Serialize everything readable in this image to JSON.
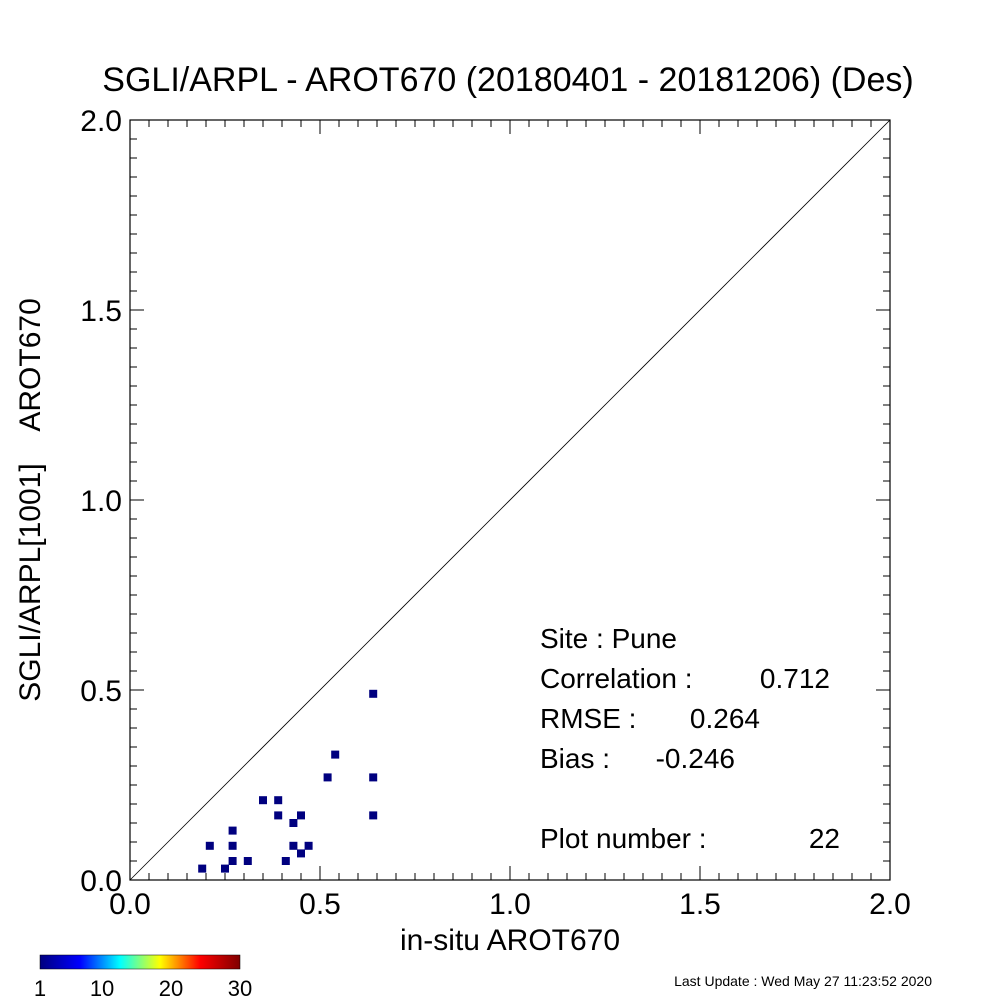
{
  "chart_data": {
    "type": "scatter",
    "title": "SGLI/ARPL - AROT670 (20180401 - 20181206) (Des)",
    "xlabel": "in-situ AROT670",
    "ylabel": "SGLI/ARPL[1001]    AROT670",
    "xlim": [
      0.0,
      2.0
    ],
    "ylim": [
      0.0,
      2.0
    ],
    "x_ticks": [
      "0.0",
      "0.5",
      "1.0",
      "1.5",
      "2.0"
    ],
    "y_ticks": [
      "0.0",
      "0.5",
      "1.0",
      "1.5",
      "2.0"
    ],
    "reference_line": "1:1",
    "grid": false,
    "point_color": "#00007f",
    "points": [
      {
        "x": 0.19,
        "y": 0.03
      },
      {
        "x": 0.21,
        "y": 0.09
      },
      {
        "x": 0.25,
        "y": 0.03
      },
      {
        "x": 0.27,
        "y": 0.05
      },
      {
        "x": 0.27,
        "y": 0.09
      },
      {
        "x": 0.27,
        "y": 0.13
      },
      {
        "x": 0.31,
        "y": 0.05
      },
      {
        "x": 0.35,
        "y": 0.21
      },
      {
        "x": 0.39,
        "y": 0.17
      },
      {
        "x": 0.39,
        "y": 0.21
      },
      {
        "x": 0.41,
        "y": 0.05
      },
      {
        "x": 0.43,
        "y": 0.09
      },
      {
        "x": 0.43,
        "y": 0.15
      },
      {
        "x": 0.45,
        "y": 0.07
      },
      {
        "x": 0.45,
        "y": 0.17
      },
      {
        "x": 0.47,
        "y": 0.09
      },
      {
        "x": 0.52,
        "y": 0.27
      },
      {
        "x": 0.54,
        "y": 0.33
      },
      {
        "x": 0.64,
        "y": 0.17
      },
      {
        "x": 0.64,
        "y": 0.27
      },
      {
        "x": 0.64,
        "y": 0.49
      }
    ],
    "stats": [
      {
        "label": "Site : Pune",
        "value": ""
      },
      {
        "label": "Correlation :",
        "value": "0.712"
      },
      {
        "label": "RMSE :",
        "value": "0.264"
      },
      {
        "label": "Bias :",
        "value": "-0.246"
      }
    ],
    "plot_number_label": "Plot number :",
    "plot_number": "22",
    "colorbar": {
      "ticks": [
        "1",
        "10",
        "20",
        "30"
      ],
      "range": [
        1,
        30
      ],
      "colors": [
        "#00007f",
        "#0000ff",
        "#00ffff",
        "#ffff00",
        "#ff0000",
        "#7f0000"
      ]
    },
    "footer": "Last Update : Wed May 27 11:23:52 2020"
  }
}
